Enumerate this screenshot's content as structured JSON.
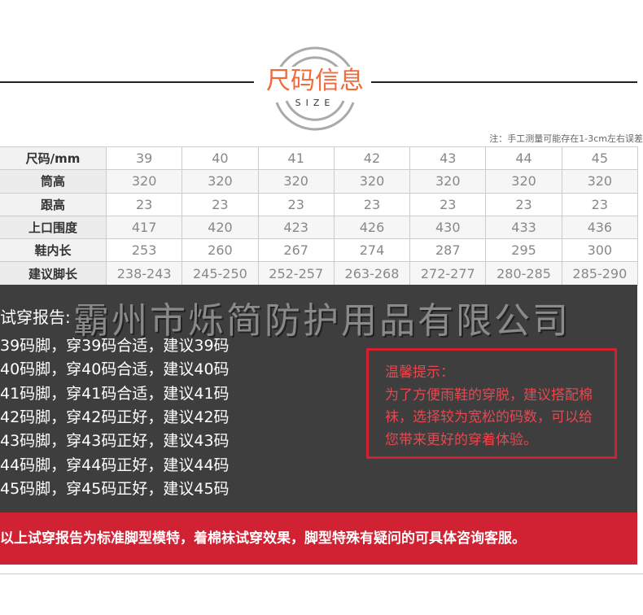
{
  "header": {
    "title": "尺码信息",
    "subtitle": "SIZE",
    "note": "注：手工测量可能存在1-3cm左右误差"
  },
  "table": {
    "rows": [
      {
        "label": "尺码/mm",
        "values": [
          "39",
          "40",
          "41",
          "42",
          "43",
          "44",
          "45"
        ]
      },
      {
        "label": "筒高",
        "values": [
          "320",
          "320",
          "320",
          "320",
          "320",
          "320",
          "320"
        ]
      },
      {
        "label": "跟高",
        "values": [
          "23",
          "23",
          "23",
          "23",
          "23",
          "23",
          "23"
        ]
      },
      {
        "label": "上口围度",
        "values": [
          "417",
          "420",
          "423",
          "426",
          "430",
          "433",
          "436"
        ]
      },
      {
        "label": "鞋内长",
        "values": [
          "253",
          "260",
          "267",
          "274",
          "287",
          "295",
          "300"
        ]
      },
      {
        "label": "建议脚长",
        "values": [
          "238-243",
          "245-250",
          "252-257",
          "263-268",
          "272-277",
          "280-285",
          "285-290"
        ]
      }
    ]
  },
  "watermark": "霸州市烁简防护用品有限公司",
  "report": {
    "title": "试穿报告:",
    "lines": [
      "39码脚，穿39码合适，建议39码",
      "40码脚，穿40码合适，建议40码",
      "41码脚，穿41码合适，建议41码",
      "42码脚，穿42码正好，建议42码",
      "43码脚，穿43码正好，建议43码",
      "44码脚，穿44码正好，建议44码",
      "45码脚，穿45码正好，建议45码"
    ]
  },
  "tip": {
    "title": "温馨提示：",
    "body": "为了方便雨鞋的穿脱，建议搭配棉袜，选择较为宽松的码数，可以给您带来更好的穿着体验。"
  },
  "banner": "以上试穿报告为标准脚型模特，着棉袜试穿效果，脚型特殊有疑问的可具体咨询客服。",
  "colors": {
    "accent": "#f26a3a",
    "red": "#d02233",
    "dark": "#3e3e3e"
  }
}
